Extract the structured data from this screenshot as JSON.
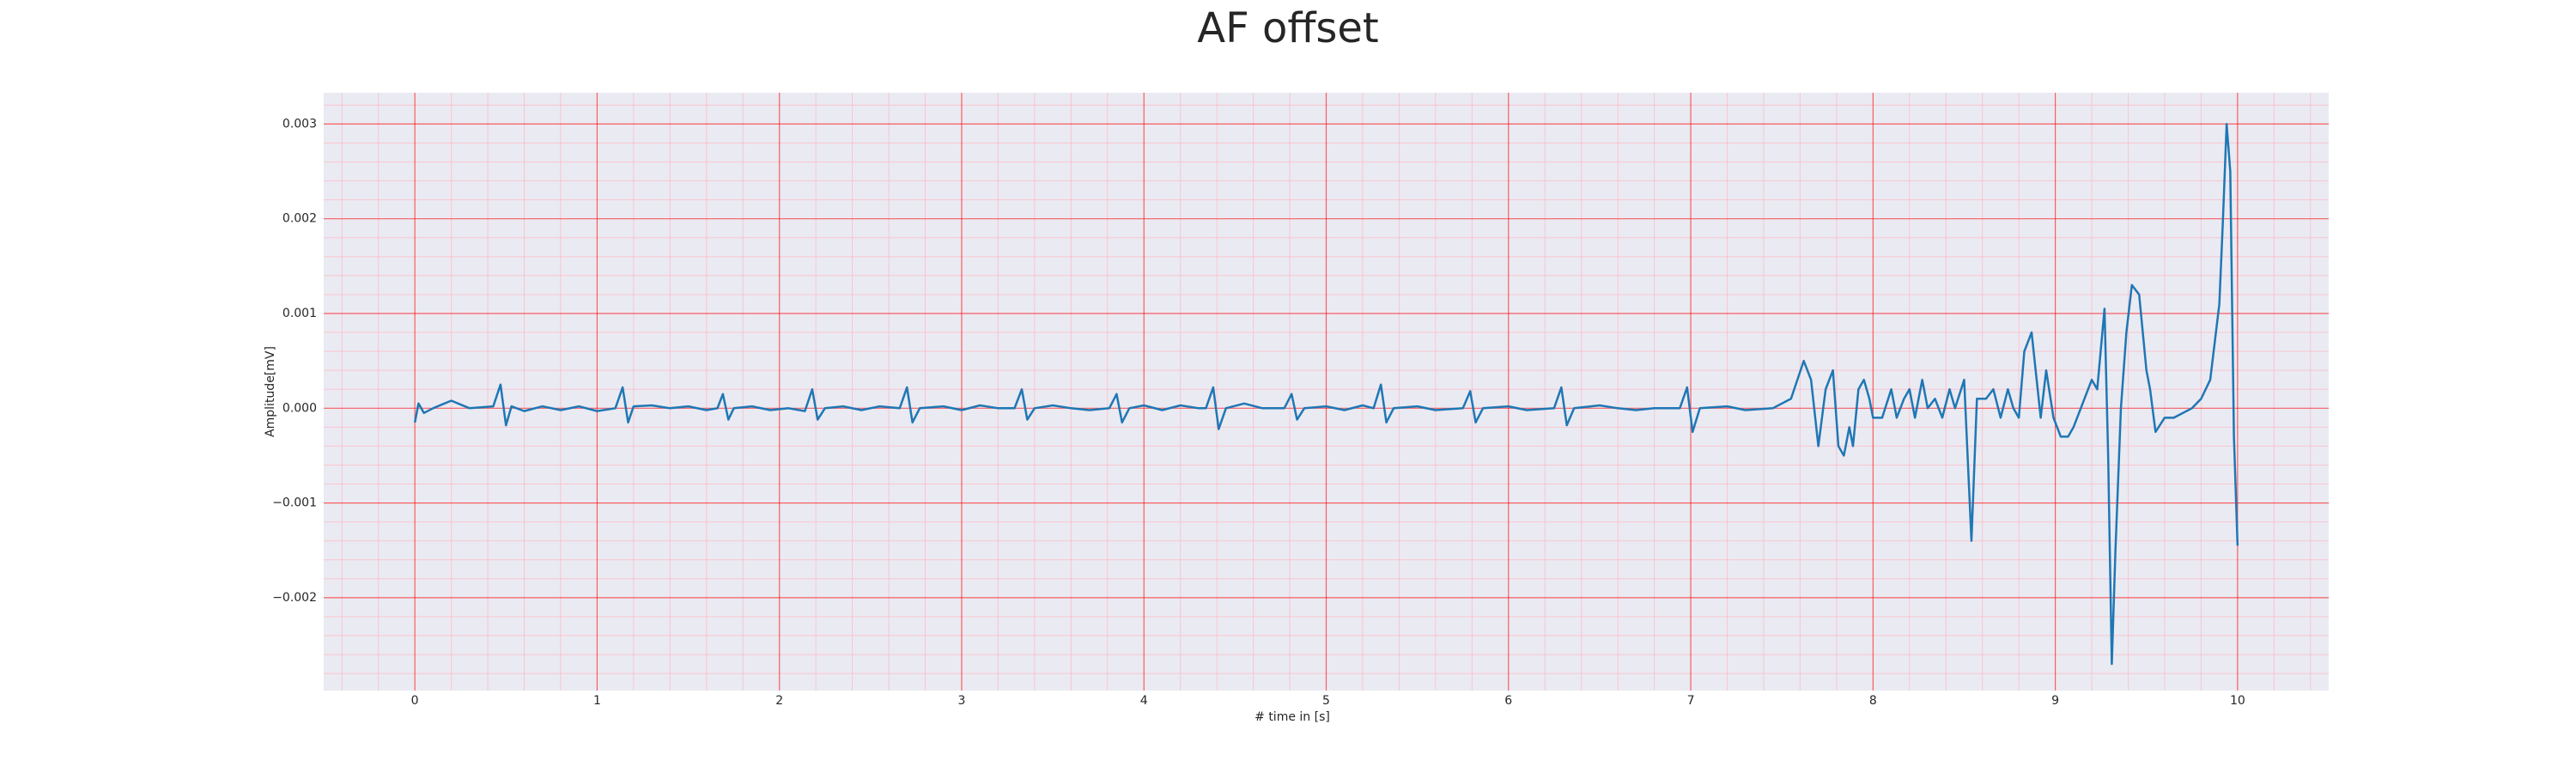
{
  "chart_data": {
    "type": "line",
    "title": "AF offset",
    "xlabel": "# time in [s]",
    "ylabel": "Amplitude[mV]",
    "color": "#1f77b4",
    "grid": true,
    "major_grid_color": "#ff0000",
    "minor_grid_color": "#ffb6c1",
    "background": "#eaeaf2",
    "xlim": [
      -0.5,
      10.5
    ],
    "ylim": [
      -0.00298,
      0.00333
    ],
    "xticks": [
      0,
      1,
      2,
      3,
      4,
      5,
      6,
      7,
      8,
      9,
      10
    ],
    "yticks": [
      {
        "value": -0.002,
        "label": "−0.002"
      },
      {
        "value": -0.001,
        "label": "−0.001"
      },
      {
        "value": 0,
        "label": "0.000"
      },
      {
        "value": 0.001,
        "label": "0.001"
      },
      {
        "value": 0.002,
        "label": "0.002"
      },
      {
        "value": 0.003,
        "label": "0.003"
      }
    ],
    "xminorticks": [
      -0.4,
      -0.2,
      0.2,
      0.4,
      0.6,
      0.8,
      1.2,
      1.4,
      1.6,
      1.8,
      2.2,
      2.4,
      2.6,
      2.8,
      3.2,
      3.4,
      3.6,
      3.8,
      4.2,
      4.4,
      4.6,
      4.8,
      5.2,
      5.4,
      5.6,
      5.8,
      6.2,
      6.4,
      6.6,
      6.8,
      7.2,
      7.4,
      7.6,
      7.8,
      8.2,
      8.4,
      8.6,
      8.8,
      9.2,
      9.4,
      9.6,
      9.8,
      10.2,
      10.4
    ],
    "yminorticks": [
      -0.0028,
      -0.0026,
      -0.0024,
      -0.0022,
      -0.0018,
      -0.0016,
      -0.0014,
      -0.0012,
      -0.0008,
      -0.0006,
      -0.0004,
      -0.0002,
      0.0002,
      0.0004,
      0.0006,
      0.0008,
      0.0012,
      0.0014,
      0.0016,
      0.0018,
      0.0022,
      0.0024,
      0.0026,
      0.0028,
      0.0032
    ],
    "x": [
      0,
      0.02,
      0.05,
      0.1,
      0.2,
      0.3,
      0.43,
      0.47,
      0.5,
      0.53,
      0.6,
      0.7,
      0.8,
      0.9,
      1.0,
      1.1,
      1.14,
      1.17,
      1.2,
      1.3,
      1.4,
      1.5,
      1.6,
      1.66,
      1.69,
      1.72,
      1.75,
      1.85,
      1.95,
      2.05,
      2.14,
      2.18,
      2.21,
      2.25,
      2.35,
      2.45,
      2.55,
      2.66,
      2.7,
      2.73,
      2.77,
      2.9,
      3.0,
      3.1,
      3.2,
      3.29,
      3.33,
      3.36,
      3.4,
      3.5,
      3.6,
      3.7,
      3.81,
      3.85,
      3.88,
      3.92,
      4.0,
      4.1,
      4.2,
      4.3,
      4.34,
      4.38,
      4.41,
      4.45,
      4.55,
      4.65,
      4.77,
      4.81,
      4.84,
      4.88,
      5.0,
      5.1,
      5.2,
      5.26,
      5.3,
      5.33,
      5.37,
      5.5,
      5.6,
      5.75,
      5.79,
      5.82,
      5.86,
      6.0,
      6.1,
      6.25,
      6.29,
      6.32,
      6.36,
      6.5,
      6.6,
      6.7,
      6.8,
      6.94,
      6.98,
      7.01,
      7.05,
      7.2,
      7.3,
      7.45,
      7.55,
      7.62,
      7.66,
      7.7,
      7.74,
      7.78,
      7.81,
      7.84,
      7.87,
      7.89,
      7.92,
      7.95,
      7.98,
      8.0,
      8.05,
      8.1,
      8.13,
      8.17,
      8.2,
      8.23,
      8.27,
      8.3,
      8.34,
      8.38,
      8.42,
      8.45,
      8.5,
      8.54,
      8.57,
      8.62,
      8.66,
      8.7,
      8.74,
      8.77,
      8.8,
      8.83,
      8.87,
      8.92,
      8.95,
      8.99,
      9.03,
      9.07,
      9.1,
      9.15,
      9.2,
      9.23,
      9.27,
      9.29,
      9.31,
      9.33,
      9.36,
      9.39,
      9.42,
      9.46,
      9.5,
      9.52,
      9.55,
      9.6,
      9.65,
      9.7,
      9.75,
      9.8,
      9.85,
      9.9,
      9.92,
      9.94,
      9.96,
      9.98,
      10.0
    ],
    "values": [
      -0.00015,
      5e-05,
      -5e-05,
      0.0,
      8e-05,
      0.0,
      2e-05,
      0.00025,
      -0.00018,
      2e-05,
      -3e-05,
      2e-05,
      -2e-05,
      2e-05,
      -3e-05,
      0.0,
      0.00022,
      -0.00015,
      2e-05,
      3e-05,
      0.0,
      2e-05,
      -2e-05,
      0.0,
      0.00015,
      -0.00012,
      0.0,
      2e-05,
      -2e-05,
      0.0,
      -3e-05,
      0.0002,
      -0.00012,
      0.0,
      2e-05,
      -2e-05,
      2e-05,
      0.0,
      0.00022,
      -0.00015,
      0.0,
      2e-05,
      -2e-05,
      3e-05,
      0.0,
      0.0,
      0.0002,
      -0.00012,
      0.0,
      3e-05,
      0.0,
      -2e-05,
      0.0,
      0.00015,
      -0.00015,
      0.0,
      3e-05,
      -2e-05,
      3e-05,
      0.0,
      0.0,
      0.00022,
      -0.00022,
      0.0,
      5e-05,
      0.0,
      0.0,
      0.00015,
      -0.00012,
      0.0,
      2e-05,
      -2e-05,
      3e-05,
      0.0,
      0.00025,
      -0.00015,
      0.0,
      2e-05,
      -2e-05,
      0.0,
      0.00018,
      -0.00015,
      0.0,
      2e-05,
      -2e-05,
      0.0,
      0.00022,
      -0.00018,
      0.0,
      3e-05,
      0.0,
      -2e-05,
      0.0,
      0.0,
      0.00022,
      -0.00025,
      0.0,
      2e-05,
      -2e-05,
      0.0,
      0.0001,
      0.0005,
      0.0003,
      -0.0004,
      0.0002,
      0.0004,
      -0.0004,
      -0.0005,
      -0.0002,
      -0.0004,
      0.0002,
      0.0003,
      0.0001,
      -0.0001,
      -0.0001,
      0.0002,
      -0.0001,
      0.0001,
      0.0002,
      -0.0001,
      0.0003,
      0.0,
      0.0001,
      -0.0001,
      0.0002,
      0.0,
      0.0003,
      -0.0014,
      0.0001,
      0.0001,
      0.0002,
      -0.0001,
      0.0002,
      0.0,
      -0.0001,
      0.0006,
      0.0008,
      -0.0001,
      0.0004,
      -0.0001,
      -0.0003,
      -0.0003,
      -0.0002,
      5e-05,
      0.0003,
      0.0002,
      0.00105,
      -0.0005,
      -0.0027,
      -0.0015,
      0.0,
      0.0008,
      0.0013,
      0.0012,
      0.0004,
      0.0002,
      -0.00025,
      -0.0001,
      -0.0001,
      -5e-05,
      0.0,
      0.0001,
      0.0003,
      0.0011,
      0.002,
      0.003,
      0.0025,
      -0.0003,
      -0.00145
    ]
  }
}
